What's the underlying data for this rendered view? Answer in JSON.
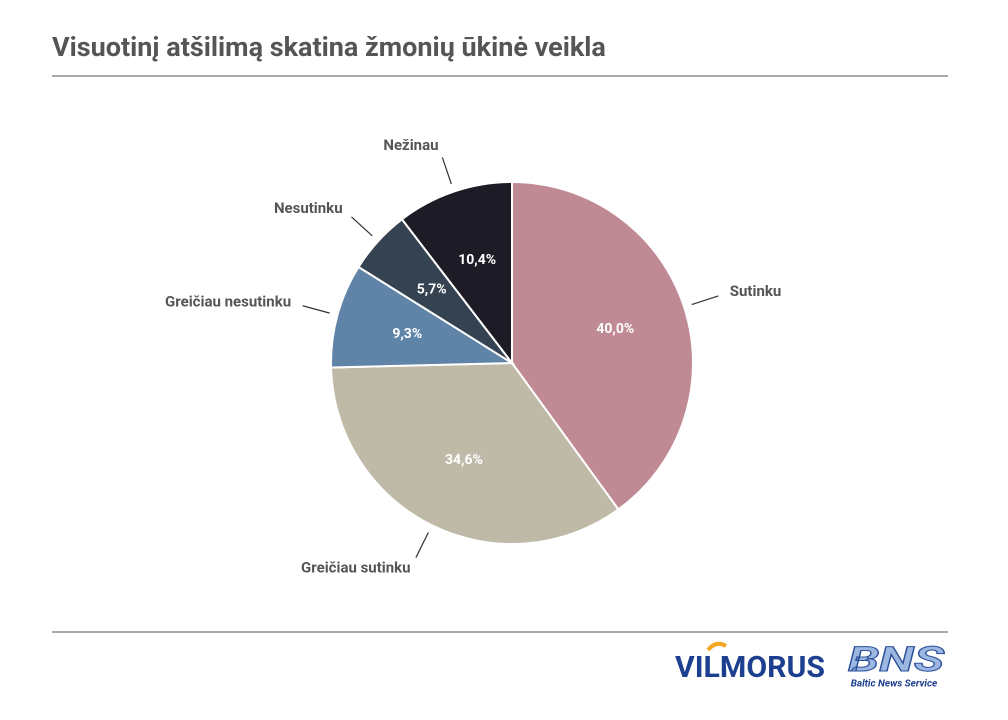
{
  "chart_data": {
    "type": "pie",
    "title": "Visuotinį atšilimą skatina žmonių ūkinė veikla",
    "categories": [
      "Sutinku",
      "Greičiau sutinku",
      "Greičiau nesutinku",
      "Nesutinku",
      "Nežinau"
    ],
    "values": [
      40.0,
      34.6,
      9.3,
      5.7,
      10.4
    ],
    "value_labels": [
      "40,0%",
      "34,6%",
      "9,3%",
      "5,7%",
      "10,4%"
    ],
    "colors": [
      "#c08a94",
      "#bfbaa8",
      "#5f84a8",
      "#354252",
      "#1c1b26"
    ]
  },
  "logos": {
    "vilmorus": "VILMORUS",
    "bns": "BNS",
    "bns_caption": "Baltic News Service"
  }
}
